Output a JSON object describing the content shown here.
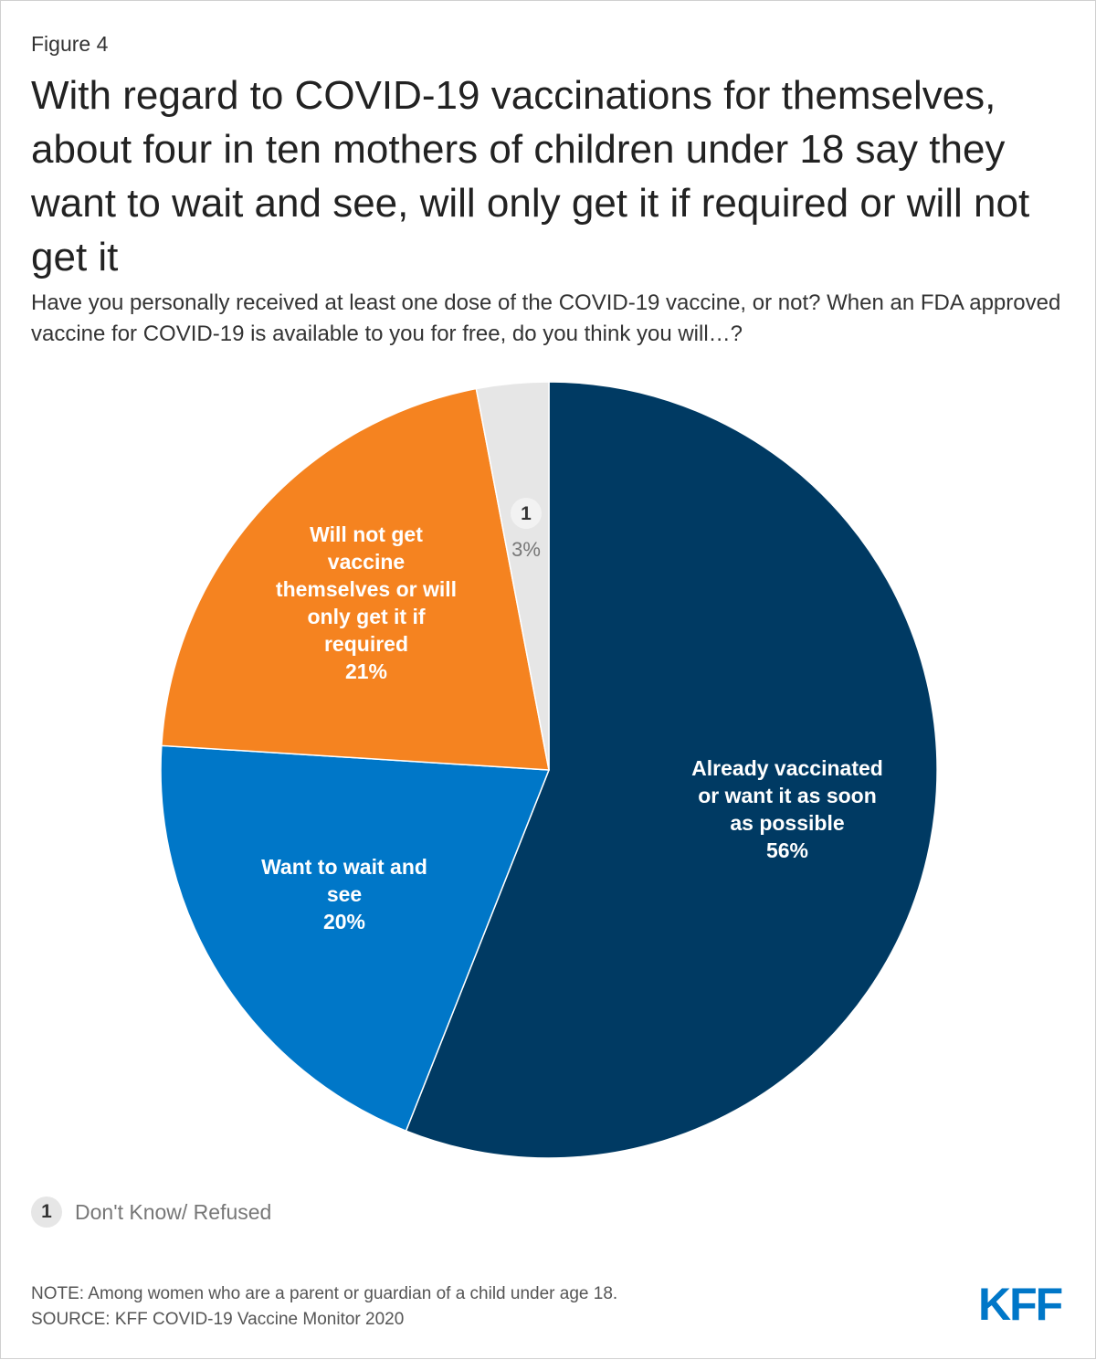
{
  "figure_label": "Figure 4",
  "title": "With regard to COVID-19 vaccinations for themselves, about four in ten mothers of children under 18 say they want to wait and see, will only get it if required or will not get it",
  "subtitle": "Have you personally received at least one dose of the COVID-19 vaccine, or not? When an FDA approved vaccine for COVID-19 is available to you for free, do you think you will…?",
  "chart_data": {
    "type": "pie",
    "title": "With regard to COVID-19 vaccinations for themselves, about four in ten mothers of children under 18 say they want to wait and see, will only get it if required or will not get it",
    "start": "12 o'clock, clockwise",
    "slices": [
      {
        "name": "Already vaccinated or want it as soon as possible",
        "label_lines": [
          "Already vaccinated",
          "or want it as soon",
          "as possible"
        ],
        "value": 56,
        "display": "56%",
        "color": "#003a63"
      },
      {
        "name": "Want to wait and see",
        "label_lines": [
          "Want to wait and",
          "see"
        ],
        "value": 20,
        "display": "20%",
        "color": "#0077c8"
      },
      {
        "name": "Will not get vaccine themselves or will only get it if required",
        "label_lines": [
          "Will not get",
          "vaccine",
          "themselves or will",
          "only get it if",
          "required"
        ],
        "value": 21,
        "display": "21%",
        "color": "#f58320"
      },
      {
        "name": "Don't Know/ Refused",
        "label_lines": [],
        "badge": "1",
        "value": 3,
        "display": "3%",
        "color": "#e6e6e6"
      }
    ]
  },
  "legend": {
    "badge": "1",
    "text": "Don't Know/ Refused"
  },
  "note": "NOTE: Among women who are a parent or guardian of a child under age 18.",
  "source": "SOURCE: KFF COVID-19 Vaccine Monitor 2020",
  "logo_text": "KFF",
  "colors": {
    "brand": "#0077c8"
  }
}
